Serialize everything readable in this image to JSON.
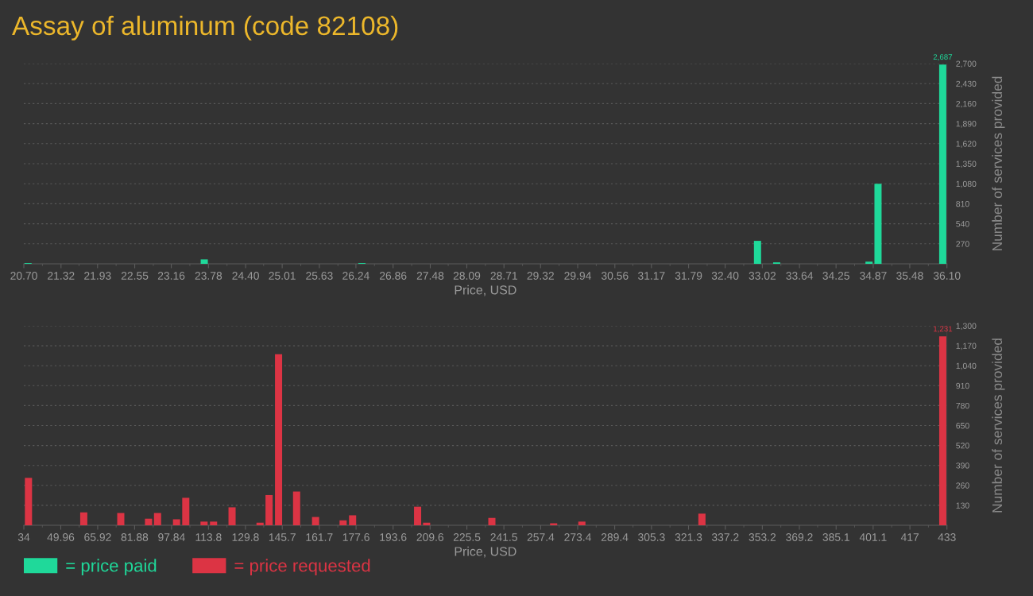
{
  "chart_data": [
    {
      "type": "bar",
      "title": "Assay of aluminum (code 82108)",
      "xlabel": "Price, USD",
      "ylabel": "Number of services provided",
      "x": [
        20.77,
        23.71,
        26.34,
        32.94,
        33.26,
        34.8,
        34.95,
        36.03
      ],
      "series": [
        {
          "name": "= price paid",
          "color": "#1fd99a",
          "values": [
            10,
            60,
            10,
            310,
            20,
            30,
            1080,
            2687
          ],
          "value_labels": [
            null,
            null,
            null,
            null,
            null,
            null,
            null,
            "2,687"
          ]
        }
      ],
      "xlim": [
        20.7,
        36.1
      ],
      "xticks": [
        {
          "value": 20.7,
          "label": "20.70"
        },
        {
          "value": 21.01,
          "label": null
        },
        21.32,
        {
          "value": 21.62,
          "label": null
        },
        21.93,
        {
          "value": 22.24,
          "label": null
        },
        22.55,
        {
          "value": 22.86,
          "label": null
        },
        23.16,
        {
          "value": 23.47,
          "label": null
        },
        23.78,
        {
          "value": 24.09,
          "label": null
        },
        {
          "value": 24.4,
          "label": "24.40"
        },
        {
          "value": 24.7,
          "label": null
        },
        25.01,
        {
          "value": 25.32,
          "label": null
        },
        25.63,
        {
          "value": 25.94,
          "label": null
        },
        26.24,
        {
          "value": 26.55,
          "label": null
        },
        26.86,
        {
          "value": 27.17,
          "label": null
        },
        27.48,
        {
          "value": 27.78,
          "label": null
        },
        28.09,
        {
          "value": 28.4,
          "label": null
        },
        28.71,
        {
          "value": 29.02,
          "label": null
        },
        29.32,
        {
          "value": 29.63,
          "label": null
        },
        29.94,
        {
          "value": 30.25,
          "label": null
        },
        30.56,
        {
          "value": 30.86,
          "label": null
        },
        31.17,
        {
          "value": 31.48,
          "label": null
        },
        31.79,
        {
          "value": 32.1,
          "label": null
        },
        {
          "value": 32.4,
          "label": "32.40"
        },
        {
          "value": 32.71,
          "label": null
        },
        33.02,
        {
          "value": 33.33,
          "label": null
        },
        33.64,
        {
          "value": 33.94,
          "label": null
        },
        34.25,
        {
          "value": 34.56,
          "label": null
        },
        34.87,
        {
          "value": 35.18,
          "label": null
        },
        35.48,
        {
          "value": 35.79,
          "label": null
        },
        {
          "value": 36.1,
          "label": "36.10"
        }
      ],
      "ylim": [
        0,
        2700
      ],
      "yticks": [
        270,
        540,
        810,
        {
          "value": 1080,
          "label": "1,080"
        },
        {
          "value": 1350,
          "label": "1,350"
        },
        {
          "value": 1620,
          "label": "1,620"
        },
        {
          "value": 1890,
          "label": "1,890"
        },
        {
          "value": 2160,
          "label": "2,160"
        },
        {
          "value": 2430,
          "label": "2,430"
        },
        {
          "value": 2700,
          "label": "2,700"
        }
      ],
      "grid": "y",
      "legend": "bottom left"
    },
    {
      "type": "bar",
      "xlabel": "Price, USD",
      "ylabel": "Number of services provided",
      "x": [
        36.0,
        59.9,
        75.9,
        87.9,
        91.8,
        100.0,
        104.0,
        111.9,
        116.0,
        124.0,
        136.1,
        140.0,
        144.1,
        151.9,
        160.1,
        172.0,
        176.1,
        204.2,
        208.1,
        236.3,
        263.0,
        275.2,
        327.1,
        431.2
      ],
      "series": [
        {
          "name": "= price requested",
          "color": "#dc3444",
          "values": [
            309,
            84,
            80,
            43,
            80,
            39,
            179,
            24,
            24,
            117,
            17,
            197,
            1115,
            220,
            54,
            32,
            65,
            121,
            17,
            48,
            13,
            24,
            76,
            1231
          ],
          "value_labels": [
            null,
            null,
            null,
            null,
            null,
            null,
            null,
            null,
            null,
            null,
            null,
            null,
            null,
            null,
            null,
            null,
            null,
            null,
            null,
            null,
            null,
            null,
            null,
            "1,231"
          ]
        }
      ],
      "xlim": [
        34,
        433
      ],
      "xticks": [
        34,
        {
          "value": 42.0,
          "label": null
        },
        49.96,
        {
          "value": 57.9,
          "label": null
        },
        65.92,
        {
          "value": 73.9,
          "label": null
        },
        81.88,
        {
          "value": 89.9,
          "label": null
        },
        97.84,
        {
          "value": 105.8,
          "label": null
        },
        113.8,
        {
          "value": 121.8,
          "label": null
        },
        129.8,
        {
          "value": 137.7,
          "label": null
        },
        145.7,
        {
          "value": 153.7,
          "label": null
        },
        161.7,
        {
          "value": 169.7,
          "label": null
        },
        177.6,
        {
          "value": 185.6,
          "label": null
        },
        193.6,
        {
          "value": 201.6,
          "label": null
        },
        209.6,
        {
          "value": 217.5,
          "label": null
        },
        225.5,
        {
          "value": 233.5,
          "label": null
        },
        241.5,
        {
          "value": 249.5,
          "label": null
        },
        257.4,
        {
          "value": 265.4,
          "label": null
        },
        273.4,
        {
          "value": 281.4,
          "label": null
        },
        289.4,
        {
          "value": 297.3,
          "label": null
        },
        305.3,
        {
          "value": 313.3,
          "label": null
        },
        321.3,
        {
          "value": 329.3,
          "label": null
        },
        337.2,
        {
          "value": 345.2,
          "label": null
        },
        353.2,
        {
          "value": 361.2,
          "label": null
        },
        369.2,
        {
          "value": 377.1,
          "label": null
        },
        385.1,
        {
          "value": 393.1,
          "label": null
        },
        401.1,
        {
          "value": 409.1,
          "label": null
        },
        417,
        {
          "value": 425.0,
          "label": null
        },
        433
      ],
      "ylim": [
        0,
        1300
      ],
      "yticks": [
        130,
        260,
        390,
        520,
        650,
        780,
        910,
        {
          "value": 1040,
          "label": "1,040"
        },
        {
          "value": 1170,
          "label": "1,170"
        },
        {
          "value": 1300,
          "label": "1,300"
        }
      ],
      "grid": "y",
      "legend": "bottom left"
    }
  ]
}
